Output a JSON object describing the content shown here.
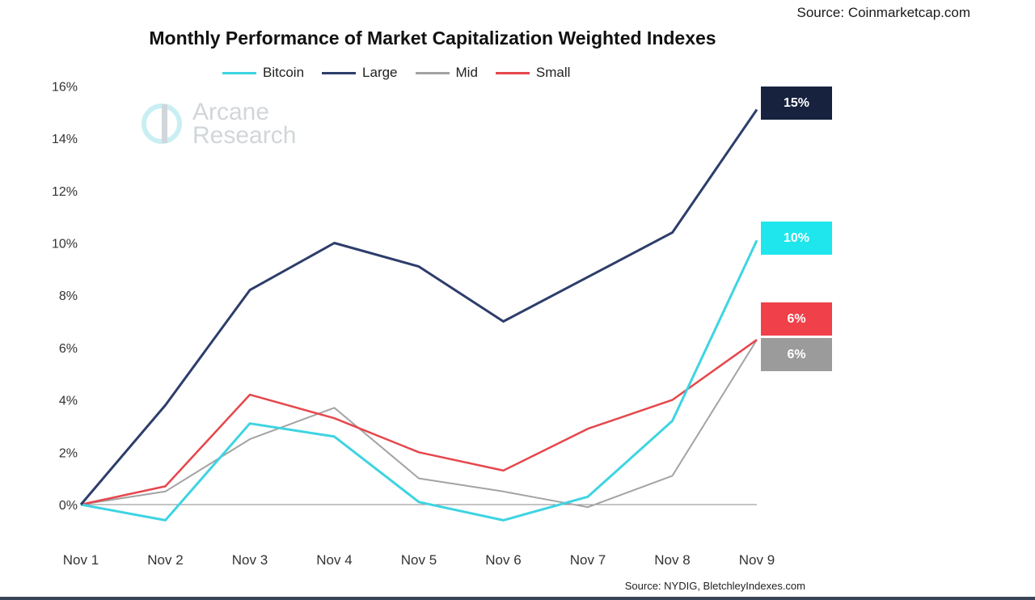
{
  "source_top": "Source: Coinmarketcap.com",
  "source_bottom": "Source: NYDIG, BletchleyIndexes.com",
  "watermark": {
    "line1": "Arcane",
    "line2": "Research"
  },
  "colors": {
    "Bitcoin": "#3ed4e2",
    "Large": "#2d3d6b",
    "Mid": "#a3a3a3",
    "Small": "#e5474c"
  },
  "chart_data": {
    "type": "line",
    "title": "Monthly Performance of Market Capitalization Weighted Indexes",
    "xlabel": "",
    "ylabel": "",
    "categories": [
      "Nov 1",
      "Nov 2",
      "Nov 3",
      "Nov 4",
      "Nov 5",
      "Nov 6",
      "Nov 7",
      "Nov 8",
      "Nov 9"
    ],
    "yticks": [
      "0%",
      "2%",
      "4%",
      "6%",
      "8%",
      "10%",
      "12%",
      "14%",
      "16%"
    ],
    "ylim": [
      -1.5,
      16
    ],
    "series": [
      {
        "name": "Bitcoin",
        "values": [
          0,
          -0.6,
          3.1,
          2.6,
          0.1,
          -0.6,
          0.3,
          3.2,
          10.1
        ]
      },
      {
        "name": "Large",
        "values": [
          0,
          3.8,
          8.2,
          10.0,
          9.1,
          7.0,
          8.7,
          10.4,
          15.1
        ]
      },
      {
        "name": "Mid",
        "values": [
          0,
          0.5,
          2.5,
          3.7,
          1.0,
          0.5,
          -0.1,
          1.1,
          6.3
        ]
      },
      {
        "name": "Small",
        "values": [
          0,
          0.7,
          4.2,
          3.3,
          2.0,
          1.3,
          2.9,
          4.0,
          6.3
        ]
      }
    ],
    "end_labels": [
      {
        "series": "Large",
        "text": "15%",
        "color": "#16223e"
      },
      {
        "series": "Bitcoin",
        "text": "10%",
        "color": "#1ee6ec"
      },
      {
        "series": "Small",
        "text": "6%",
        "color": "#f0404a"
      },
      {
        "series": "Mid",
        "text": "6%",
        "color": "#9b9b9b"
      }
    ]
  }
}
